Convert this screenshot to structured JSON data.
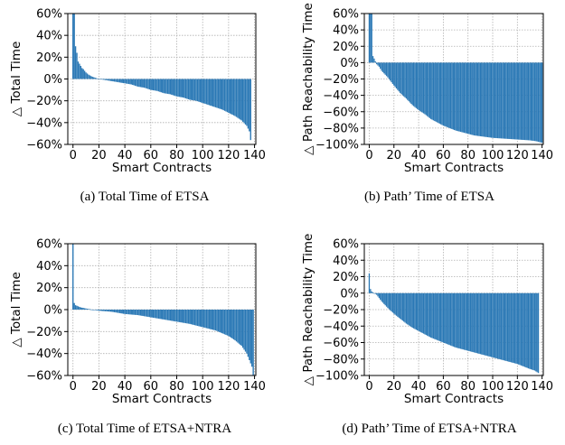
{
  "chart_data": [
    {
      "type": "bar",
      "caption": "(a)  Total Time of ETSA",
      "xlabel": "Smart Contracts",
      "ylabel": "△ Total Time",
      "xlim": [
        -4,
        141
      ],
      "ylim": [
        -60,
        60
      ],
      "xticks": [
        0,
        20,
        40,
        60,
        80,
        100,
        120,
        140
      ],
      "yticks": [
        60,
        40,
        20,
        0,
        -20,
        -40,
        -60
      ],
      "yticklabels": [
        "60%",
        "40%",
        "20%",
        "0%",
        "−20%",
        "−40%",
        "−60%"
      ],
      "grid": true,
      "n_contracts": 138,
      "series": [
        {
          "name": "",
          "keypoints": [
            [
              0,
              60
            ],
            [
              1,
              60
            ],
            [
              2,
              30
            ],
            [
              3,
              24
            ],
            [
              4,
              16
            ],
            [
              5,
              14
            ],
            [
              6,
              12
            ],
            [
              7,
              10
            ],
            [
              8,
              9
            ],
            [
              10,
              6
            ],
            [
              12,
              4
            ],
            [
              15,
              2
            ],
            [
              20,
              0
            ],
            [
              25,
              -1
            ],
            [
              30,
              -2
            ],
            [
              35,
              -3
            ],
            [
              40,
              -4
            ],
            [
              45,
              -5
            ],
            [
              50,
              -7
            ],
            [
              55,
              -8
            ],
            [
              60,
              -10
            ],
            [
              65,
              -11
            ],
            [
              70,
              -13
            ],
            [
              75,
              -14
            ],
            [
              80,
              -16
            ],
            [
              85,
              -17
            ],
            [
              90,
              -19
            ],
            [
              95,
              -20
            ],
            [
              100,
              -22
            ],
            [
              105,
              -24
            ],
            [
              110,
              -26
            ],
            [
              115,
              -28
            ],
            [
              120,
              -31
            ],
            [
              125,
              -34
            ],
            [
              130,
              -38
            ],
            [
              134,
              -43
            ],
            [
              136,
              -48
            ],
            [
              137,
              -56
            ]
          ]
        }
      ]
    },
    {
      "type": "bar",
      "caption": "(b)  Path’ Time of ETSA",
      "xlabel": "Smart Contracts",
      "ylabel": "△ Path Reachability Time",
      "xlim": [
        -4,
        141
      ],
      "ylim": [
        -100,
        60
      ],
      "xticks": [
        0,
        20,
        40,
        60,
        80,
        100,
        120,
        140
      ],
      "yticks": [
        60,
        40,
        20,
        0,
        -20,
        -40,
        -60,
        -80,
        -100
      ],
      "yticklabels": [
        "60%",
        "40%",
        "20%",
        "0%",
        "−20%",
        "−40%",
        "−60%",
        "−80%",
        "−100%"
      ],
      "grid": true,
      "n_contracts": 141,
      "series": [
        {
          "name": "",
          "keypoints": [
            [
              0,
              60
            ],
            [
              1,
              60
            ],
            [
              2,
              60
            ],
            [
              3,
              8
            ],
            [
              4,
              5
            ],
            [
              6,
              -2
            ],
            [
              8,
              -5
            ],
            [
              10,
              -10
            ],
            [
              15,
              -18
            ],
            [
              20,
              -28
            ],
            [
              25,
              -37
            ],
            [
              30,
              -44
            ],
            [
              35,
              -52
            ],
            [
              40,
              -58
            ],
            [
              45,
              -63
            ],
            [
              50,
              -69
            ],
            [
              55,
              -73
            ],
            [
              60,
              -77
            ],
            [
              65,
              -80
            ],
            [
              70,
              -83
            ],
            [
              75,
              -85
            ],
            [
              80,
              -87
            ],
            [
              85,
              -89
            ],
            [
              90,
              -90
            ],
            [
              100,
              -92
            ],
            [
              110,
              -93
            ],
            [
              120,
              -94
            ],
            [
              130,
              -95
            ],
            [
              135,
              -96
            ],
            [
              140,
              -98
            ]
          ]
        }
      ]
    },
    {
      "type": "bar",
      "caption": "(c)  Total Time of ETSA+NTRA",
      "xlabel": "Smart Contracts",
      "ylabel": "△ Total Time",
      "xlim": [
        -4,
        141
      ],
      "ylim": [
        -60,
        60
      ],
      "xticks": [
        0,
        20,
        40,
        60,
        80,
        100,
        120,
        140
      ],
      "yticks": [
        60,
        40,
        20,
        0,
        -20,
        -40,
        -60
      ],
      "yticklabels": [
        "60%",
        "40%",
        "20%",
        "0%",
        "−20%",
        "−40%",
        "−60%"
      ],
      "grid": true,
      "n_contracts": 140,
      "series": [
        {
          "name": "",
          "keypoints": [
            [
              0,
              60
            ],
            [
              1,
              6
            ],
            [
              2,
              4
            ],
            [
              4,
              3
            ],
            [
              6,
              2
            ],
            [
              10,
              1
            ],
            [
              15,
              0
            ],
            [
              20,
              -1
            ],
            [
              30,
              -2
            ],
            [
              40,
              -4
            ],
            [
              50,
              -5
            ],
            [
              60,
              -7
            ],
            [
              70,
              -9
            ],
            [
              80,
              -11
            ],
            [
              90,
              -13
            ],
            [
              100,
              -16
            ],
            [
              110,
              -19
            ],
            [
              120,
              -24
            ],
            [
              125,
              -28
            ],
            [
              130,
              -33
            ],
            [
              134,
              -40
            ],
            [
              136,
              -46
            ],
            [
              138,
              -52
            ],
            [
              139,
              -60
            ]
          ]
        }
      ]
    },
    {
      "type": "bar",
      "caption": "(d)  Path’ Time of ETSA+NTRA",
      "xlabel": "Smart Contracts",
      "ylabel": "△ Path Reachability Time",
      "xlim": [
        -4,
        141
      ],
      "ylim": [
        -100,
        60
      ],
      "xticks": [
        0,
        20,
        40,
        60,
        80,
        100,
        120,
        140
      ],
      "yticks": [
        60,
        40,
        20,
        0,
        -20,
        -40,
        -60,
        -80,
        -100
      ],
      "yticklabels": [
        "60%",
        "40%",
        "20%",
        "0%",
        "−20%",
        "−40%",
        "−60%",
        "−80%",
        "−100%"
      ],
      "grid": true,
      "n_contracts": 138,
      "series": [
        {
          "name": "",
          "keypoints": [
            [
              0,
              24
            ],
            [
              1,
              5
            ],
            [
              2,
              2
            ],
            [
              4,
              0
            ],
            [
              6,
              -2
            ],
            [
              8,
              -6
            ],
            [
              10,
              -10
            ],
            [
              15,
              -18
            ],
            [
              20,
              -25
            ],
            [
              25,
              -31
            ],
            [
              30,
              -37
            ],
            [
              35,
              -42
            ],
            [
              40,
              -46
            ],
            [
              45,
              -50
            ],
            [
              50,
              -54
            ],
            [
              55,
              -57
            ],
            [
              60,
              -60
            ],
            [
              65,
              -63
            ],
            [
              70,
              -66
            ],
            [
              75,
              -68
            ],
            [
              80,
              -70
            ],
            [
              85,
              -72
            ],
            [
              90,
              -74
            ],
            [
              95,
              -76
            ],
            [
              100,
              -78
            ],
            [
              105,
              -80
            ],
            [
              110,
              -82
            ],
            [
              115,
              -84
            ],
            [
              120,
              -86
            ],
            [
              125,
              -89
            ],
            [
              130,
              -92
            ],
            [
              134,
              -94
            ],
            [
              137,
              -97
            ]
          ]
        }
      ]
    }
  ],
  "colors": {
    "bar": "#2a78b5",
    "grid": "#b0b0b0"
  }
}
